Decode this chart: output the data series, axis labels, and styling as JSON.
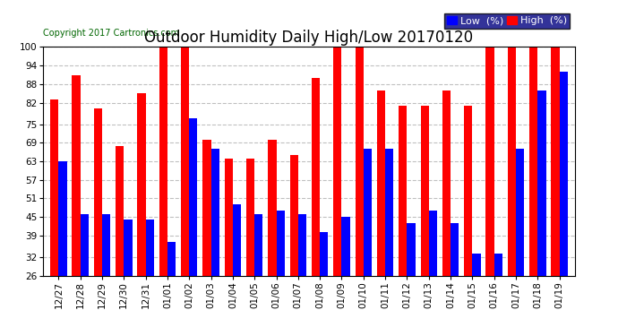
{
  "title": "Outdoor Humidity Daily High/Low 20170120",
  "copyright": "Copyright 2017 Cartronics.com",
  "legend_low": "Low  (%)",
  "legend_high": "High  (%)",
  "categories": [
    "12/27",
    "12/28",
    "12/29",
    "12/30",
    "12/31",
    "01/01",
    "01/02",
    "01/03",
    "01/04",
    "01/05",
    "01/06",
    "01/07",
    "01/08",
    "01/09",
    "01/10",
    "01/11",
    "01/12",
    "01/13",
    "01/14",
    "01/15",
    "01/16",
    "01/17",
    "01/18",
    "01/19"
  ],
  "high": [
    83,
    91,
    80,
    68,
    85,
    100,
    100,
    70,
    64,
    64,
    70,
    65,
    90,
    100,
    100,
    86,
    81,
    81,
    86,
    81,
    100,
    100,
    100,
    100
  ],
  "low": [
    63,
    46,
    46,
    44,
    44,
    37,
    77,
    67,
    49,
    46,
    47,
    46,
    40,
    45,
    67,
    67,
    43,
    47,
    43,
    33,
    33,
    67,
    86,
    92
  ],
  "ylim_min": 26,
  "ylim_max": 100,
  "yticks": [
    26,
    32,
    39,
    45,
    51,
    57,
    63,
    69,
    75,
    82,
    88,
    94,
    100
  ],
  "bar_width": 0.38,
  "high_color": "#ff0000",
  "low_color": "#0000ff",
  "bg_color": "#ffffff",
  "grid_color": "#c0c0c0",
  "title_fontsize": 12,
  "tick_fontsize": 7.5,
  "legend_fontsize": 8,
  "copyright_fontsize": 7
}
